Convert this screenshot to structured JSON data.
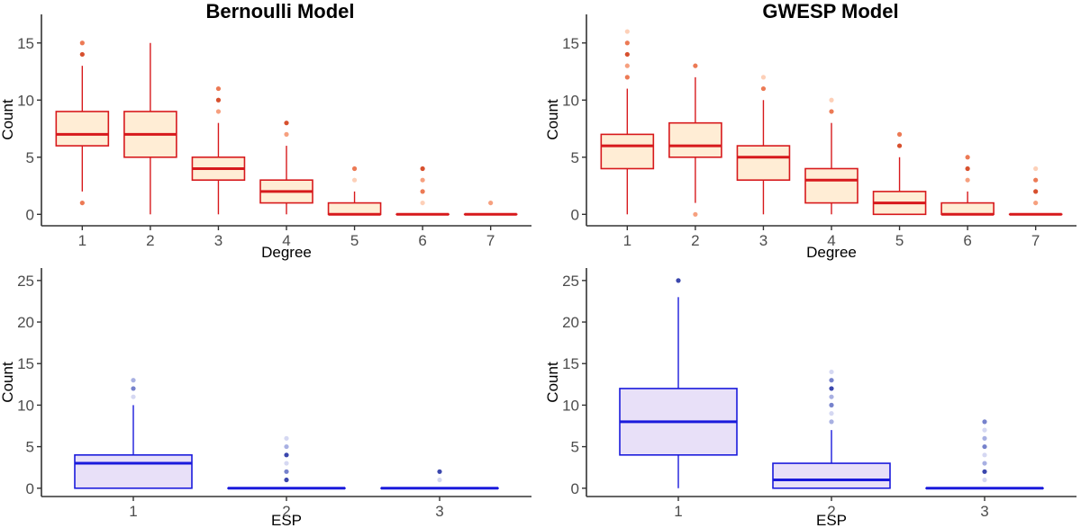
{
  "chart_data": [
    {
      "type": "boxplot",
      "title": "Bernoulli Model",
      "xlabel": "Degree",
      "ylabel": "Count",
      "categories": [
        "1",
        "2",
        "3",
        "4",
        "5",
        "6",
        "7"
      ],
      "ylim": [
        -1,
        17.5
      ],
      "yticks": [
        0,
        5,
        10,
        15
      ],
      "grid": false,
      "box_stroke": "#d7191c",
      "box_fill": "#ffedd5",
      "outlier_colors": [
        "#fdd0b8",
        "#f6a07f",
        "#ec7a55",
        "#d7502e"
      ],
      "boxes": [
        {
          "q1": 6,
          "median": 7,
          "q3": 9,
          "whisker_low": 2,
          "whisker_high": 13,
          "outliers": [
            1,
            14,
            15
          ]
        },
        {
          "q1": 5,
          "median": 7,
          "q3": 9,
          "whisker_low": 0,
          "whisker_high": 15,
          "outliers": []
        },
        {
          "q1": 3,
          "median": 4,
          "q3": 5,
          "whisker_low": 0,
          "whisker_high": 8,
          "outliers": [
            9,
            10,
            11
          ]
        },
        {
          "q1": 1,
          "median": 2,
          "q3": 3,
          "whisker_low": 0,
          "whisker_high": 6,
          "outliers": [
            7,
            8
          ]
        },
        {
          "q1": 0,
          "median": 0,
          "q3": 1,
          "whisker_low": 0,
          "whisker_high": 2,
          "outliers": [
            3,
            4
          ]
        },
        {
          "q1": 0,
          "median": 0,
          "q3": 0,
          "whisker_low": 0,
          "whisker_high": 0,
          "outliers": [
            1,
            2,
            3,
            4
          ]
        },
        {
          "q1": 0,
          "median": 0,
          "q3": 0,
          "whisker_low": 0,
          "whisker_high": 0,
          "outliers": [
            1
          ]
        }
      ]
    },
    {
      "type": "boxplot",
      "title": "GWESP Model",
      "xlabel": "Degree",
      "ylabel": "Count",
      "categories": [
        "1",
        "2",
        "3",
        "4",
        "5",
        "6",
        "7"
      ],
      "ylim": [
        -1,
        17.5
      ],
      "yticks": [
        0,
        5,
        10,
        15
      ],
      "grid": false,
      "box_stroke": "#d7191c",
      "box_fill": "#ffedd5",
      "outlier_colors": [
        "#fdd0b8",
        "#f6a07f",
        "#ec7a55",
        "#d7502e"
      ],
      "boxes": [
        {
          "q1": 4,
          "median": 6,
          "q3": 7,
          "whisker_low": 0,
          "whisker_high": 11,
          "outliers": [
            12,
            13,
            14,
            15,
            16
          ]
        },
        {
          "q1": 5,
          "median": 6,
          "q3": 8,
          "whisker_low": 1,
          "whisker_high": 12,
          "outliers": [
            0,
            13
          ]
        },
        {
          "q1": 3,
          "median": 5,
          "q3": 6,
          "whisker_low": 0,
          "whisker_high": 10,
          "outliers": [
            11,
            12
          ]
        },
        {
          "q1": 1,
          "median": 3,
          "q3": 4,
          "whisker_low": 0,
          "whisker_high": 8,
          "outliers": [
            9,
            10
          ]
        },
        {
          "q1": 0,
          "median": 1,
          "q3": 2,
          "whisker_low": 0,
          "whisker_high": 5,
          "outliers": [
            6,
            7
          ]
        },
        {
          "q1": 0,
          "median": 0,
          "q3": 1,
          "whisker_low": 0,
          "whisker_high": 2,
          "outliers": [
            3,
            4,
            5
          ]
        },
        {
          "q1": 0,
          "median": 0,
          "q3": 0,
          "whisker_low": 0,
          "whisker_high": 0,
          "outliers": [
            1,
            2,
            3,
            4
          ]
        }
      ]
    },
    {
      "type": "boxplot",
      "title": "",
      "xlabel": "ESP",
      "ylabel": "Count",
      "categories": [
        "1",
        "2",
        "3"
      ],
      "ylim": [
        -1,
        26.5
      ],
      "yticks": [
        0,
        5,
        10,
        15,
        20,
        25
      ],
      "grid": false,
      "box_stroke": "#1a1adc",
      "box_fill": "#e8e0f8",
      "outlier_colors": [
        "#d5d8f2",
        "#a8b0e2",
        "#7682cc",
        "#3b47ad"
      ],
      "boxes": [
        {
          "q1": 0,
          "median": 3,
          "q3": 4,
          "whisker_low": 0,
          "whisker_high": 10,
          "outliers": [
            11,
            12,
            13
          ]
        },
        {
          "q1": 0,
          "median": 0,
          "q3": 0,
          "whisker_low": 0,
          "whisker_high": 0,
          "outliers": [
            1,
            2,
            3,
            4,
            5,
            6
          ]
        },
        {
          "q1": 0,
          "median": 0,
          "q3": 0,
          "whisker_low": 0,
          "whisker_high": 0,
          "outliers": [
            1,
            2
          ]
        }
      ]
    },
    {
      "type": "boxplot",
      "title": "",
      "xlabel": "ESP",
      "ylabel": "Count",
      "categories": [
        "1",
        "2",
        "3"
      ],
      "ylim": [
        -1,
        26.5
      ],
      "yticks": [
        0,
        5,
        10,
        15,
        20,
        25
      ],
      "grid": false,
      "box_stroke": "#1a1adc",
      "box_fill": "#e8e0f8",
      "outlier_colors": [
        "#d5d8f2",
        "#a8b0e2",
        "#7682cc",
        "#3b47ad"
      ],
      "boxes": [
        {
          "q1": 4,
          "median": 8,
          "q3": 12,
          "whisker_low": 0,
          "whisker_high": 23,
          "outliers": [
            25
          ]
        },
        {
          "q1": 0,
          "median": 1,
          "q3": 3,
          "whisker_low": 0,
          "whisker_high": 7,
          "outliers": [
            8,
            9,
            10,
            11,
            12,
            13,
            14
          ]
        },
        {
          "q1": 0,
          "median": 0,
          "q3": 0,
          "whisker_low": 0,
          "whisker_high": 0,
          "outliers": [
            1,
            2,
            3,
            4,
            5,
            6,
            7,
            8
          ]
        }
      ]
    }
  ]
}
